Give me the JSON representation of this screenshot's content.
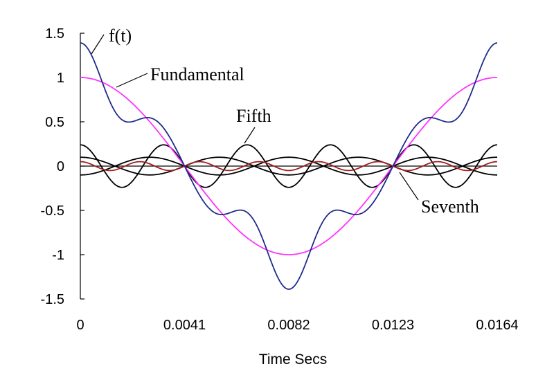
{
  "chart_data": {
    "type": "line",
    "xlabel": "Time Secs",
    "ylabel": "",
    "xlim": [
      0,
      0.0164
    ],
    "ylim": [
      -1.5,
      1.5
    ],
    "x_ticks": [
      "0",
      "0.0041",
      "0.0082",
      "0.0123",
      "0.0164"
    ],
    "x_tick_values": [
      0,
      0.0041,
      0.0082,
      0.0123,
      0.0164
    ],
    "y_ticks": [
      "1.5",
      "1",
      "0.5",
      "0",
      "-0.5",
      "-1",
      "-1.5"
    ],
    "y_tick_values": [
      1.5,
      1,
      0.5,
      0,
      -0.5,
      -1,
      -1.5
    ],
    "grid": false,
    "period": 0.0164,
    "series": [
      {
        "name": "f(t)",
        "color": "#1f2a8c",
        "harmonics": [
          [
            1,
            1.0
          ],
          [
            3,
            0.1
          ],
          [
            5,
            0.24
          ],
          [
            7,
            0.05
          ]
        ]
      },
      {
        "name": "Fundamental",
        "color": "#ff33ff",
        "harmonics": [
          [
            1,
            1.0
          ]
        ]
      },
      {
        "name": "",
        "color": "#000000",
        "harmonics": [
          [
            3,
            0.1
          ]
        ]
      },
      {
        "name": "Fifth",
        "color": "#000000",
        "harmonics": [
          [
            5,
            0.24
          ]
        ]
      },
      {
        "name": "",
        "color": "#000000",
        "harmonics": [
          [
            3,
            -0.1
          ]
        ]
      },
      {
        "name": "Seventh",
        "color": "#a01e1e",
        "harmonics": [
          [
            7,
            0.05
          ]
        ]
      }
    ],
    "annotations": [
      {
        "text": "f(t)",
        "x": 0.0002,
        "y": 1.27
      },
      {
        "text": "Fundamental",
        "x": 0.0018,
        "y": 0.9
      },
      {
        "text": "Fifth",
        "x": 0.006,
        "y": 0.24
      },
      {
        "text": "Seventh",
        "x": 0.0128,
        "y": -0.05
      }
    ]
  }
}
